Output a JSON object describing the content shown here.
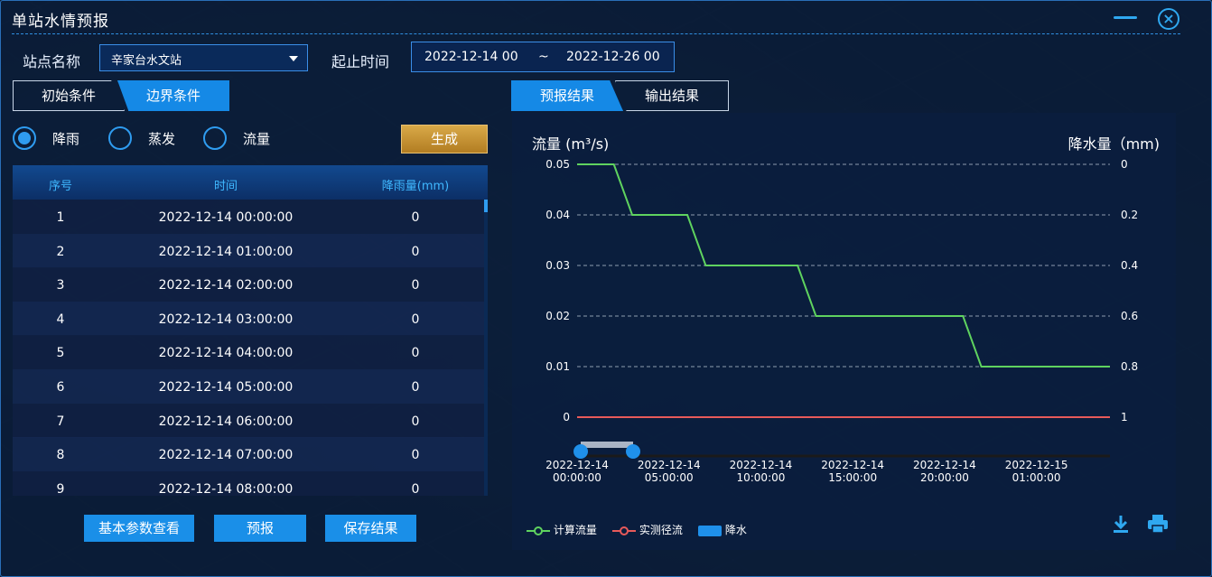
{
  "window": {
    "title": "单站水情预报"
  },
  "form": {
    "station_label": "站点名称",
    "station_value": "辛家台水文站",
    "time_label": "起止时间",
    "start_time": "2022-12-14 00",
    "separator": "~",
    "end_time": "2022-12-26 00"
  },
  "left_tabs": [
    {
      "label": "初始条件",
      "active": false
    },
    {
      "label": "边界条件",
      "active": true
    }
  ],
  "right_tabs": [
    {
      "label": "预报结果",
      "active": true
    },
    {
      "label": "输出结果",
      "active": false
    }
  ],
  "radios": [
    {
      "label": "降雨",
      "checked": true
    },
    {
      "label": "蒸发",
      "checked": false
    },
    {
      "label": "流量",
      "checked": false
    }
  ],
  "generate_label": "生成",
  "table": {
    "headers": [
      "序号",
      "时间",
      "降雨量(mm)"
    ],
    "rows": [
      [
        "1",
        "2022-12-14 00:00:00",
        "0"
      ],
      [
        "2",
        "2022-12-14 01:00:00",
        "0"
      ],
      [
        "3",
        "2022-12-14 02:00:00",
        "0"
      ],
      [
        "4",
        "2022-12-14 03:00:00",
        "0"
      ],
      [
        "5",
        "2022-12-14 04:00:00",
        "0"
      ],
      [
        "6",
        "2022-12-14 05:00:00",
        "0"
      ],
      [
        "7",
        "2022-12-14 06:00:00",
        "0"
      ],
      [
        "8",
        "2022-12-14 07:00:00",
        "0"
      ],
      [
        "9",
        "2022-12-14 08:00:00",
        "0"
      ]
    ]
  },
  "buttons": {
    "params": "基本参数查看",
    "forecast": "预报",
    "save": "保存结果"
  },
  "colors": {
    "calc_flow": "#5fd35f",
    "measured_flow": "#e85a5a",
    "rain": "#1f90ea",
    "accent": "#1589e6"
  },
  "chart_data": {
    "type": "line",
    "ylabel_left": "流量 (m³/s)",
    "ylabel_right": "降水量（mm)",
    "y_left_ticks": [
      "0",
      "0.01",
      "0.02",
      "0.03",
      "0.04",
      "0.05"
    ],
    "y_right_ticks": [
      "1",
      "0.8",
      "0.6",
      "0.4",
      "0.2",
      "0"
    ],
    "ylim_left": [
      0,
      0.05
    ],
    "ylim_right_inverted": [
      0,
      1
    ],
    "x_ticks": [
      [
        "2022-12-14",
        "00:00:00"
      ],
      [
        "2022-12-14",
        "05:00:00"
      ],
      [
        "2022-12-14",
        "10:00:00"
      ],
      [
        "2022-12-14",
        "15:00:00"
      ],
      [
        "2022-12-14",
        "20:00:00"
      ],
      [
        "2022-12-15",
        "01:00:00"
      ]
    ],
    "x_hours_range": [
      0,
      29
    ],
    "series": [
      {
        "name": "计算流量",
        "points": [
          [
            0,
            0.05
          ],
          [
            2,
            0.05
          ],
          [
            3,
            0.04
          ],
          [
            6,
            0.04
          ],
          [
            7,
            0.03
          ],
          [
            12,
            0.03
          ],
          [
            13,
            0.02
          ],
          [
            21,
            0.02
          ],
          [
            22,
            0.01
          ],
          [
            29,
            0.01
          ]
        ]
      },
      {
        "name": "实测径流",
        "points": [
          [
            0,
            0
          ],
          [
            29,
            0
          ]
        ]
      },
      {
        "name": "降水",
        "points": []
      }
    ],
    "grid": true,
    "legend_position": "bottom-left"
  },
  "icons": {
    "download": "download-icon",
    "print": "print-icon",
    "close": "close-icon",
    "minimize": "minimize-icon"
  }
}
